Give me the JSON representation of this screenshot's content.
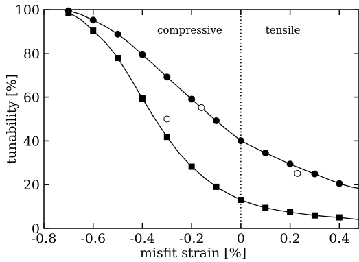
{
  "chart_data": {
    "type": "scatter",
    "xlabel": "misfit strain [%]",
    "ylabel": "tunability [%]",
    "xlim": [
      -0.8,
      0.48
    ],
    "ylim": [
      0,
      100
    ],
    "xticks": [
      -0.8,
      -0.6,
      -0.4,
      -0.2,
      0,
      0.2,
      0.4
    ],
    "xtick_labels": [
      "-0.8",
      "-0.6",
      "-0.4",
      "-0.2",
      "0",
      "0.2",
      "0.4"
    ],
    "yticks": [
      0,
      20,
      40,
      60,
      80,
      100
    ],
    "ytick_labels": [
      "0",
      "20",
      "40",
      "60",
      "80",
      "100"
    ],
    "annotations": [
      {
        "text": "compressive",
        "x": -0.34,
        "y": 89
      },
      {
        "text": "tensile",
        "x": 0.1,
        "y": 89
      }
    ],
    "reference_line": {
      "x": 0,
      "style": "dotted"
    },
    "series": [
      {
        "marker": "filled-circle",
        "x": [
          -0.7,
          -0.6,
          -0.5,
          -0.4,
          -0.3,
          -0.2,
          -0.1,
          0.0,
          0.1,
          0.2,
          0.3,
          0.4
        ],
        "y": [
          99.5,
          95.2,
          88.8,
          79.4,
          69.2,
          59.1,
          49.2,
          40.1,
          34.5,
          29.4,
          24.9,
          20.5
        ]
      },
      {
        "marker": "filled-square",
        "x": [
          -0.7,
          -0.6,
          -0.5,
          -0.4,
          -0.3,
          -0.2,
          -0.1,
          0.0,
          0.1,
          0.2,
          0.3,
          0.4
        ],
        "y": [
          98.5,
          90.4,
          77.9,
          59.4,
          41.8,
          28.2,
          19.0,
          13.0,
          9.4,
          7.4,
          5.9,
          5.0
        ]
      },
      {
        "marker": "open-circle",
        "x": [
          -0.3,
          -0.16,
          0.23
        ],
        "y": [
          50.0,
          55.2,
          25.1
        ]
      }
    ],
    "fit_curves": [
      {
        "x": [
          -0.72,
          -0.7,
          -0.65,
          -0.6,
          -0.55,
          -0.5,
          -0.45,
          -0.4,
          -0.35,
          -0.3,
          -0.25,
          -0.2,
          -0.15,
          -0.1,
          -0.05,
          0.0,
          0.05,
          0.1,
          0.15,
          0.2,
          0.25,
          0.3,
          0.35,
          0.4,
          0.45,
          0.48
        ],
        "y": [
          100,
          99.5,
          97.8,
          95.2,
          92.3,
          88.8,
          84.4,
          79.4,
          74.4,
          69.2,
          64.1,
          59.1,
          54.1,
          49.2,
          44.5,
          40.1,
          37.2,
          34.5,
          31.9,
          29.4,
          27.1,
          24.9,
          22.7,
          20.5,
          18.9,
          18.3
        ]
      },
      {
        "x": [
          -0.72,
          -0.7,
          -0.65,
          -0.6,
          -0.55,
          -0.5,
          -0.45,
          -0.4,
          -0.35,
          -0.3,
          -0.25,
          -0.2,
          -0.15,
          -0.1,
          -0.05,
          0.0,
          0.05,
          0.1,
          0.15,
          0.2,
          0.25,
          0.3,
          0.35,
          0.4,
          0.45,
          0.48
        ],
        "y": [
          100,
          98.6,
          95.5,
          90.4,
          85.0,
          77.9,
          69.0,
          59.4,
          50.2,
          41.8,
          34.3,
          28.2,
          23.3,
          19.0,
          15.8,
          13.0,
          11.0,
          9.4,
          8.3,
          7.4,
          6.6,
          5.9,
          5.4,
          5.0,
          4.4,
          4.0
        ]
      }
    ]
  }
}
